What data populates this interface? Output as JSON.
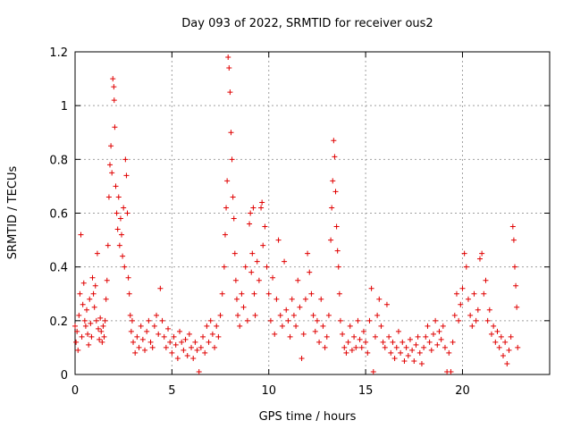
{
  "chart_data": {
    "type": "scatter",
    "title": "Day 093 of 2022, SRMTID for receiver ous2",
    "xlabel": "GPS time / hours",
    "ylabel": "SRMTID / TECUs",
    "xlim": [
      0,
      24.5
    ],
    "ylim": [
      0,
      1.2
    ],
    "xticks": [
      0,
      5,
      10,
      15,
      20
    ],
    "xtick_labels": [
      "0",
      "5",
      "10",
      "15",
      "20"
    ],
    "yticks": [
      0,
      0.2,
      0.4,
      0.6,
      0.8,
      1,
      1.2
    ],
    "ytick_labels": [
      "0",
      "0.2",
      "0.4",
      "0.6",
      "0.8",
      "1",
      "1.2"
    ],
    "grid": true,
    "marker": "+",
    "color": "#e00000",
    "series": [
      {
        "name": "SRMTID",
        "points": [
          [
            0.0,
            0.18
          ],
          [
            0.05,
            0.12
          ],
          [
            0.1,
            0.16
          ],
          [
            0.15,
            0.09
          ],
          [
            0.2,
            0.22
          ],
          [
            0.25,
            0.3
          ],
          [
            0.3,
            0.52
          ],
          [
            0.35,
            0.14
          ],
          [
            0.4,
            0.26
          ],
          [
            0.45,
            0.34
          ],
          [
            0.5,
            0.2
          ],
          [
            0.55,
            0.18
          ],
          [
            0.6,
            0.24
          ],
          [
            0.65,
            0.15
          ],
          [
            0.7,
            0.11
          ],
          [
            0.75,
            0.28
          ],
          [
            0.8,
            0.19
          ],
          [
            0.85,
            0.14
          ],
          [
            0.9,
            0.36
          ],
          [
            0.95,
            0.3
          ],
          [
            1.0,
            0.25
          ],
          [
            1.05,
            0.33
          ],
          [
            1.1,
            0.2
          ],
          [
            1.15,
            0.45
          ],
          [
            1.2,
            0.17
          ],
          [
            1.25,
            0.13
          ],
          [
            1.3,
            0.21
          ],
          [
            1.35,
            0.16
          ],
          [
            1.4,
            0.12
          ],
          [
            1.45,
            0.18
          ],
          [
            1.5,
            0.14
          ],
          [
            1.55,
            0.2
          ],
          [
            1.6,
            0.28
          ],
          [
            1.65,
            0.35
          ],
          [
            1.7,
            0.48
          ],
          [
            1.75,
            0.66
          ],
          [
            1.8,
            0.78
          ],
          [
            1.85,
            0.85
          ],
          [
            1.9,
            0.75
          ],
          [
            1.95,
            1.1
          ],
          [
            2.0,
            1.07
          ],
          [
            2.02,
            1.02
          ],
          [
            2.05,
            0.92
          ],
          [
            2.1,
            0.7
          ],
          [
            2.15,
            0.6
          ],
          [
            2.2,
            0.54
          ],
          [
            2.25,
            0.66
          ],
          [
            2.3,
            0.48
          ],
          [
            2.35,
            0.58
          ],
          [
            2.4,
            0.52
          ],
          [
            2.45,
            0.44
          ],
          [
            2.5,
            0.62
          ],
          [
            2.55,
            0.4
          ],
          [
            2.6,
            0.8
          ],
          [
            2.65,
            0.74
          ],
          [
            2.7,
            0.6
          ],
          [
            2.75,
            0.36
          ],
          [
            2.8,
            0.3
          ],
          [
            2.85,
            0.22
          ],
          [
            2.9,
            0.16
          ],
          [
            2.95,
            0.2
          ],
          [
            3.0,
            0.12
          ],
          [
            3.1,
            0.08
          ],
          [
            3.2,
            0.14
          ],
          [
            3.3,
            0.1
          ],
          [
            3.4,
            0.18
          ],
          [
            3.5,
            0.13
          ],
          [
            3.6,
            0.09
          ],
          [
            3.7,
            0.16
          ],
          [
            3.8,
            0.2
          ],
          [
            3.9,
            0.12
          ],
          [
            4.0,
            0.1
          ],
          [
            4.1,
            0.18
          ],
          [
            4.2,
            0.22
          ],
          [
            4.3,
            0.15
          ],
          [
            4.4,
            0.32
          ],
          [
            4.5,
            0.2
          ],
          [
            4.6,
            0.14
          ],
          [
            4.7,
            0.1
          ],
          [
            4.8,
            0.17
          ],
          [
            4.9,
            0.12
          ],
          [
            5.0,
            0.08
          ],
          [
            5.1,
            0.14
          ],
          [
            5.2,
            0.11
          ],
          [
            5.3,
            0.06
          ],
          [
            5.4,
            0.16
          ],
          [
            5.5,
            0.12
          ],
          [
            5.6,
            0.09
          ],
          [
            5.7,
            0.13
          ],
          [
            5.8,
            0.07
          ],
          [
            5.9,
            0.15
          ],
          [
            6.0,
            0.1
          ],
          [
            6.1,
            0.06
          ],
          [
            6.2,
            0.12
          ],
          [
            6.3,
            0.09
          ],
          [
            6.4,
            0.01
          ],
          [
            6.5,
            0.1
          ],
          [
            6.6,
            0.14
          ],
          [
            6.7,
            0.08
          ],
          [
            6.8,
            0.18
          ],
          [
            6.9,
            0.12
          ],
          [
            7.0,
            0.2
          ],
          [
            7.1,
            0.15
          ],
          [
            7.2,
            0.1
          ],
          [
            7.3,
            0.18
          ],
          [
            7.4,
            0.14
          ],
          [
            7.5,
            0.22
          ],
          [
            7.6,
            0.3
          ],
          [
            7.7,
            0.4
          ],
          [
            7.75,
            0.52
          ],
          [
            7.8,
            0.62
          ],
          [
            7.85,
            0.72
          ],
          [
            7.9,
            1.18
          ],
          [
            7.95,
            1.14
          ],
          [
            8.0,
            1.05
          ],
          [
            8.05,
            0.9
          ],
          [
            8.1,
            0.8
          ],
          [
            8.15,
            0.66
          ],
          [
            8.2,
            0.58
          ],
          [
            8.25,
            0.45
          ],
          [
            8.3,
            0.35
          ],
          [
            8.35,
            0.28
          ],
          [
            8.4,
            0.22
          ],
          [
            8.5,
            0.18
          ],
          [
            8.6,
            0.3
          ],
          [
            8.7,
            0.25
          ],
          [
            8.8,
            0.4
          ],
          [
            8.9,
            0.2
          ],
          [
            9.0,
            0.56
          ],
          [
            9.05,
            0.6
          ],
          [
            9.1,
            0.38
          ],
          [
            9.15,
            0.45
          ],
          [
            9.2,
            0.62
          ],
          [
            9.25,
            0.3
          ],
          [
            9.3,
            0.22
          ],
          [
            9.4,
            0.42
          ],
          [
            9.5,
            0.35
          ],
          [
            9.6,
            0.62
          ],
          [
            9.65,
            0.64
          ],
          [
            9.7,
            0.48
          ],
          [
            9.8,
            0.55
          ],
          [
            9.9,
            0.4
          ],
          [
            10.0,
            0.3
          ],
          [
            10.1,
            0.2
          ],
          [
            10.2,
            0.36
          ],
          [
            10.3,
            0.15
          ],
          [
            10.4,
            0.28
          ],
          [
            10.5,
            0.5
          ],
          [
            10.6,
            0.22
          ],
          [
            10.7,
            0.18
          ],
          [
            10.8,
            0.42
          ],
          [
            10.9,
            0.24
          ],
          [
            11.0,
            0.2
          ],
          [
            11.1,
            0.14
          ],
          [
            11.2,
            0.28
          ],
          [
            11.3,
            0.22
          ],
          [
            11.4,
            0.18
          ],
          [
            11.5,
            0.35
          ],
          [
            11.6,
            0.25
          ],
          [
            11.7,
            0.06
          ],
          [
            11.8,
            0.15
          ],
          [
            11.9,
            0.28
          ],
          [
            12.0,
            0.45
          ],
          [
            12.1,
            0.38
          ],
          [
            12.2,
            0.3
          ],
          [
            12.3,
            0.22
          ],
          [
            12.4,
            0.16
          ],
          [
            12.5,
            0.2
          ],
          [
            12.6,
            0.12
          ],
          [
            12.7,
            0.28
          ],
          [
            12.8,
            0.18
          ],
          [
            12.9,
            0.1
          ],
          [
            13.0,
            0.14
          ],
          [
            13.1,
            0.22
          ],
          [
            13.2,
            0.5
          ],
          [
            13.25,
            0.62
          ],
          [
            13.3,
            0.72
          ],
          [
            13.35,
            0.87
          ],
          [
            13.4,
            0.81
          ],
          [
            13.45,
            0.68
          ],
          [
            13.5,
            0.55
          ],
          [
            13.55,
            0.46
          ],
          [
            13.6,
            0.4
          ],
          [
            13.65,
            0.3
          ],
          [
            13.7,
            0.2
          ],
          [
            13.8,
            0.15
          ],
          [
            13.9,
            0.1
          ],
          [
            14.0,
            0.08
          ],
          [
            14.1,
            0.12
          ],
          [
            14.2,
            0.18
          ],
          [
            14.3,
            0.09
          ],
          [
            14.4,
            0.14
          ],
          [
            14.5,
            0.1
          ],
          [
            14.6,
            0.2
          ],
          [
            14.7,
            0.13
          ],
          [
            14.8,
            0.1
          ],
          [
            14.9,
            0.16
          ],
          [
            15.0,
            0.12
          ],
          [
            15.1,
            0.08
          ],
          [
            15.2,
            0.2
          ],
          [
            15.3,
            0.32
          ],
          [
            15.4,
            0.01
          ],
          [
            15.5,
            0.14
          ],
          [
            15.6,
            0.22
          ],
          [
            15.7,
            0.28
          ],
          [
            15.8,
            0.18
          ],
          [
            15.9,
            0.12
          ],
          [
            16.0,
            0.1
          ],
          [
            16.1,
            0.26
          ],
          [
            16.2,
            0.14
          ],
          [
            16.3,
            0.08
          ],
          [
            16.4,
            0.12
          ],
          [
            16.5,
            0.06
          ],
          [
            16.6,
            0.1
          ],
          [
            16.7,
            0.16
          ],
          [
            16.8,
            0.08
          ],
          [
            16.9,
            0.12
          ],
          [
            17.0,
            0.05
          ],
          [
            17.1,
            0.1
          ],
          [
            17.2,
            0.07
          ],
          [
            17.3,
            0.13
          ],
          [
            17.4,
            0.09
          ],
          [
            17.5,
            0.05
          ],
          [
            17.6,
            0.11
          ],
          [
            17.7,
            0.14
          ],
          [
            17.8,
            0.08
          ],
          [
            17.9,
            0.04
          ],
          [
            18.0,
            0.1
          ],
          [
            18.1,
            0.14
          ],
          [
            18.2,
            0.18
          ],
          [
            18.3,
            0.12
          ],
          [
            18.4,
            0.09
          ],
          [
            18.5,
            0.15
          ],
          [
            18.6,
            0.2
          ],
          [
            18.7,
            0.11
          ],
          [
            18.8,
            0.16
          ],
          [
            18.9,
            0.13
          ],
          [
            19.0,
            0.18
          ],
          [
            19.1,
            0.1
          ],
          [
            19.2,
            0.01
          ],
          [
            19.3,
            0.08
          ],
          [
            19.4,
            0.01
          ],
          [
            19.5,
            0.12
          ],
          [
            19.6,
            0.22
          ],
          [
            19.7,
            0.3
          ],
          [
            19.8,
            0.2
          ],
          [
            19.9,
            0.26
          ],
          [
            20.0,
            0.32
          ],
          [
            20.1,
            0.45
          ],
          [
            20.2,
            0.4
          ],
          [
            20.3,
            0.28
          ],
          [
            20.4,
            0.22
          ],
          [
            20.5,
            0.18
          ],
          [
            20.6,
            0.3
          ],
          [
            20.7,
            0.2
          ],
          [
            20.8,
            0.24
          ],
          [
            20.9,
            0.43
          ],
          [
            21.0,
            0.45
          ],
          [
            21.1,
            0.3
          ],
          [
            21.2,
            0.35
          ],
          [
            21.3,
            0.2
          ],
          [
            21.4,
            0.24
          ],
          [
            21.5,
            0.15
          ],
          [
            21.6,
            0.18
          ],
          [
            21.7,
            0.12
          ],
          [
            21.8,
            0.16
          ],
          [
            21.9,
            0.1
          ],
          [
            22.0,
            0.14
          ],
          [
            22.1,
            0.07
          ],
          [
            22.2,
            0.12
          ],
          [
            22.3,
            0.04
          ],
          [
            22.4,
            0.09
          ],
          [
            22.5,
            0.14
          ],
          [
            22.6,
            0.55
          ],
          [
            22.65,
            0.5
          ],
          [
            22.7,
            0.4
          ],
          [
            22.75,
            0.33
          ],
          [
            22.8,
            0.25
          ],
          [
            22.85,
            0.1
          ]
        ]
      }
    ]
  }
}
